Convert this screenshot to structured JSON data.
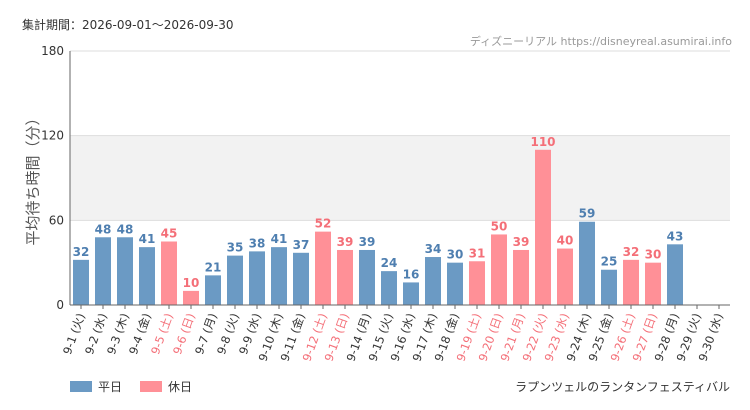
{
  "header": {
    "period": "集計期間：2026-09-01～2026-09-30",
    "credit": "ディズニーリアル https://disneyreal.asumirai.info"
  },
  "legend": {
    "weekday": "平日",
    "holiday": "休日"
  },
  "footnote": "ラプンツェルのランタンフェスティバル",
  "colors": {
    "weekday": "#6b9ac4",
    "holiday": "#ff9097",
    "weekday_label": "#4f7fb0",
    "holiday_label": "#f46f78",
    "weekday_tick": "#333333",
    "holiday_tick": "#f46f78"
  },
  "chart_data": {
    "type": "bar",
    "ylabel": "平均待ち時間（分）",
    "ylim": [
      0,
      180
    ],
    "yticks": [
      0,
      60,
      120,
      180
    ],
    "grid": true,
    "shaded_band": [
      60,
      120
    ],
    "legend_position": "bottom-left",
    "categories": [
      "9-1 (火)",
      "9-2 (水)",
      "9-3 (木)",
      "9-4 (金)",
      "9-5 (土)",
      "9-6 (日)",
      "9-7 (月)",
      "9-8 (火)",
      "9-9 (水)",
      "9-10 (木)",
      "9-11 (金)",
      "9-12 (土)",
      "9-13 (日)",
      "9-14 (月)",
      "9-15 (火)",
      "9-16 (水)",
      "9-17 (木)",
      "9-18 (金)",
      "9-19 (土)",
      "9-20 (日)",
      "9-21 (月)",
      "9-22 (火)",
      "9-23 (水)",
      "9-24 (木)",
      "9-25 (金)",
      "9-26 (土)",
      "9-27 (日)",
      "9-28 (月)",
      "9-29 (火)",
      "9-30 (水)"
    ],
    "values": [
      32,
      48,
      48,
      41,
      45,
      10,
      21,
      35,
      38,
      41,
      37,
      52,
      39,
      39,
      24,
      16,
      34,
      30,
      31,
      50,
      39,
      110,
      40,
      59,
      25,
      32,
      30,
      43,
      null,
      null
    ],
    "day_type": [
      "weekday",
      "weekday",
      "weekday",
      "weekday",
      "holiday",
      "holiday",
      "weekday",
      "weekday",
      "weekday",
      "weekday",
      "weekday",
      "holiday",
      "holiday",
      "weekday",
      "weekday",
      "weekday",
      "weekday",
      "weekday",
      "holiday",
      "holiday",
      "holiday",
      "holiday",
      "holiday",
      "weekday",
      "weekday",
      "holiday",
      "holiday",
      "weekday",
      "weekday",
      "weekday"
    ]
  }
}
